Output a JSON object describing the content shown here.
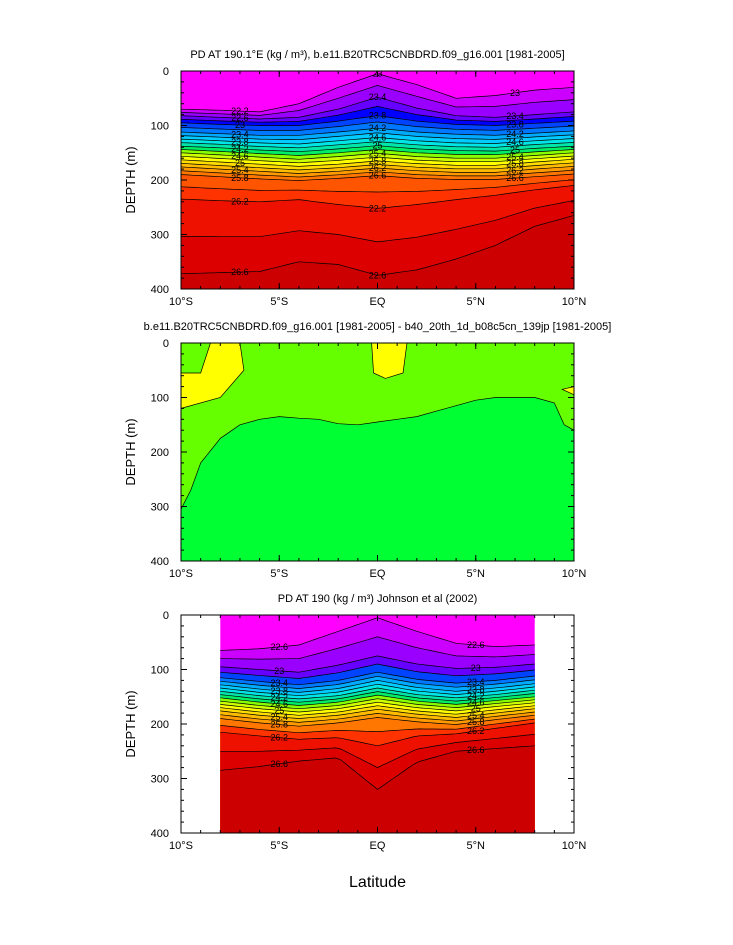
{
  "chart_data": [
    {
      "type": "heatmap",
      "title": "PD AT 190.1°E (kg / m³), b.e11.B20TRC5CNBDRD.f09_g16.001 [1981-2005]",
      "ylabel": "DEPTH (m)",
      "xlabel": "",
      "xlim": [
        -10,
        10
      ],
      "ylim": [
        400,
        0
      ],
      "x_ticks": [
        "10°S",
        "5°S",
        "EQ",
        "5°N",
        "10°N"
      ],
      "y_ticks": [
        "0",
        "100",
        "200",
        "300",
        "400"
      ],
      "contour_labels": [
        "22.2",
        "22.6",
        "23",
        "23.4",
        "23.8",
        "24.2",
        "24.6",
        "25",
        "25.4",
        "25.8",
        "26.2",
        "26.6",
        "23",
        "23.4",
        "23.8",
        "24.2",
        "24.6",
        "25",
        "25.4",
        "25.8",
        "26.2",
        "26.6",
        "22.2",
        "22.6",
        "23",
        "23.4",
        "23.8",
        "24.2",
        "24.6",
        "25",
        "25.4",
        "25.8",
        "26.2",
        "26.6"
      ],
      "isopycnal_depths": {
        "x": [
          -10,
          -8,
          -6,
          -4,
          -2,
          0,
          2,
          4,
          6,
          8,
          10
        ],
        "levels": [
          {
            "value": 22.2,
            "depth": [
              70,
              72,
              75,
              60,
              30,
              5,
              25,
              50,
              45,
              35,
              30
            ]
          },
          {
            "value": 22.6,
            "depth": [
              82,
              85,
              88,
              85,
              70,
              48,
              68,
              82,
              85,
              80,
              75
            ]
          },
          {
            "value": 23.0,
            "depth": [
              95,
              98,
              100,
              100,
              92,
              82,
              92,
              98,
              100,
              96,
              92
            ]
          },
          {
            "value": 23.4,
            "depth": [
              112,
              115,
              118,
              118,
              112,
              105,
              112,
              116,
              118,
              114,
              110
            ]
          },
          {
            "value": 23.8,
            "depth": [
              125,
              128,
              132,
              134,
              128,
              122,
              128,
              132,
              133,
              128,
              124
            ]
          },
          {
            "value": 24.2,
            "depth": [
              138,
              141,
              145,
              148,
              143,
              137,
              143,
              146,
              147,
              142,
              138
            ]
          },
          {
            "value": 24.6,
            "depth": [
              150,
              154,
              158,
              162,
              157,
              151,
              157,
              160,
              160,
              155,
              150
            ]
          },
          {
            "value": 25.0,
            "depth": [
              163,
              167,
              171,
              175,
              171,
              165,
              170,
              173,
              173,
              167,
              162
            ]
          },
          {
            "value": 25.4,
            "depth": [
              176,
              180,
              184,
              188,
              184,
              178,
              183,
              186,
              186,
              180,
              175
            ]
          },
          {
            "value": 25.8,
            "depth": [
              190,
              194,
              198,
              201,
              197,
              192,
              197,
              199,
              199,
              194,
              189
            ]
          },
          {
            "value": 26.2,
            "depth": [
              235,
              238,
              240,
              236,
              245,
              252,
              245,
              236,
              228,
              218,
              210
            ]
          },
          {
            "value": 26.6,
            "depth": [
              372,
              370,
              368,
              350,
              355,
              375,
              365,
              345,
              320,
              285,
              265
            ]
          }
        ]
      }
    },
    {
      "type": "heatmap",
      "title": "b.e11.B20TRC5CNBDRD.f09_g16.001 [1981-2005] - b40_20th_1d_b08c5cn_139jp [1981-2005]",
      "ylabel": "DEPTH (m)",
      "xlabel": "",
      "xlim": [
        -10,
        10
      ],
      "ylim": [
        400,
        0
      ],
      "x_ticks": [
        "10°S",
        "5°S",
        "EQ",
        "5°N",
        "10°N"
      ],
      "y_ticks": [
        "0",
        "100",
        "200",
        "300",
        "400"
      ],
      "colors": {
        "upper": "#66ff00",
        "lower": "#00ff33",
        "patch": "#ffff00"
      }
    },
    {
      "type": "heatmap",
      "title": "PD AT 190 (kg / m³) Johnson et al (2002)",
      "ylabel": "DEPTH (m)",
      "xlabel": "Latitude",
      "xlim": [
        -10,
        10
      ],
      "ylim": [
        400,
        0
      ],
      "data_extent_lat": [
        -8,
        8
      ],
      "x_ticks": [
        "10°S",
        "5°S",
        "EQ",
        "5°N",
        "10°N"
      ],
      "y_ticks": [
        "0",
        "100",
        "200",
        "300",
        "400"
      ],
      "contour_labels": [
        "22.6",
        "23",
        "23.4",
        "23.8",
        "24.2",
        "24.6",
        "25",
        "25.4",
        "25.8",
        "26.2",
        "26.6",
        "22.6",
        "23",
        "23.4",
        "23.8",
        "24.2",
        "24.6",
        "25",
        "25.4",
        "25.8",
        "26.2",
        "26.6"
      ],
      "isopycnal_depths": {
        "x": [
          -8,
          -6,
          -4,
          -2,
          0,
          2,
          4,
          6,
          8
        ],
        "levels": [
          {
            "value": 22.6,
            "depth": [
              65,
              62,
              55,
              30,
              5,
              30,
              52,
              58,
              55
            ]
          },
          {
            "value": 23.0,
            "depth": [
              95,
              100,
              105,
              92,
              75,
              90,
              98,
              96,
              90
            ]
          },
          {
            "value": 23.4,
            "depth": [
              115,
              122,
              128,
              120,
              105,
              118,
              125,
              120,
              112
            ]
          },
          {
            "value": 23.8,
            "depth": [
              128,
              136,
              142,
              135,
              120,
              133,
              140,
              134,
              126
            ]
          },
          {
            "value": 24.2,
            "depth": [
              140,
              148,
              154,
              148,
              134,
              146,
              152,
              146,
              138
            ]
          },
          {
            "value": 24.6,
            "depth": [
              152,
              160,
              166,
              160,
              147,
              158,
              164,
              157,
              150
            ]
          },
          {
            "value": 25.0,
            "depth": [
              164,
              172,
              178,
              172,
              160,
              170,
              176,
              168,
              161
            ]
          },
          {
            "value": 25.4,
            "depth": [
              176,
              184,
              190,
              184,
              173,
              182,
              188,
              180,
              172
            ]
          },
          {
            "value": 25.8,
            "depth": [
              190,
              198,
              204,
              198,
              188,
              196,
              201,
              192,
              184
            ]
          },
          {
            "value": 26.2,
            "depth": [
              215,
              222,
              228,
              225,
              240,
              222,
              218,
              208,
              198
            ]
          },
          {
            "value": 26.6,
            "depth": [
              285,
              278,
              268,
              262,
              320,
              270,
              250,
              245,
              240
            ]
          }
        ]
      }
    }
  ]
}
